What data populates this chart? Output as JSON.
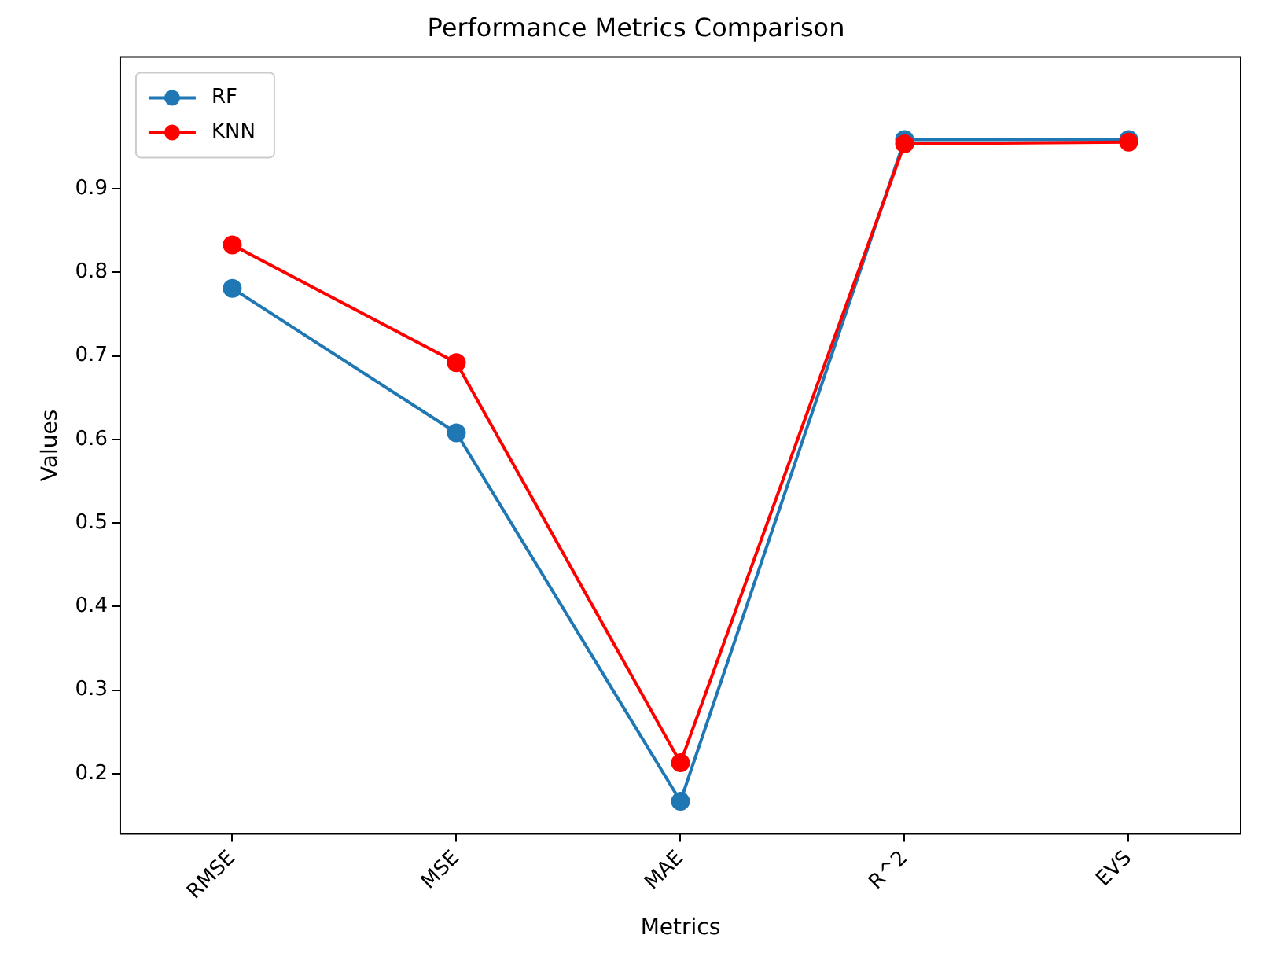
{
  "chart_data": {
    "type": "line",
    "title": "Performance Metrics Comparison",
    "xlabel": "Metrics",
    "ylabel": "Values",
    "categories": [
      "RMSE",
      "MSE",
      "MAE",
      "R^2",
      "EVS"
    ],
    "series": [
      {
        "name": "RF",
        "color": "#1f77b4",
        "values": [
          0.781,
          0.608,
          0.167,
          0.959,
          0.959
        ]
      },
      {
        "name": "KNN",
        "color": "#ff0000",
        "values": [
          0.833,
          0.692,
          0.213,
          0.954,
          0.956
        ]
      }
    ],
    "ylim": [
      0.128,
      1.058
    ],
    "yticks": [
      0.2,
      0.3,
      0.4,
      0.5,
      0.6,
      0.7,
      0.8,
      0.9
    ],
    "grid": false,
    "legend": "top left",
    "marker": "circle",
    "line_style": "solid"
  }
}
